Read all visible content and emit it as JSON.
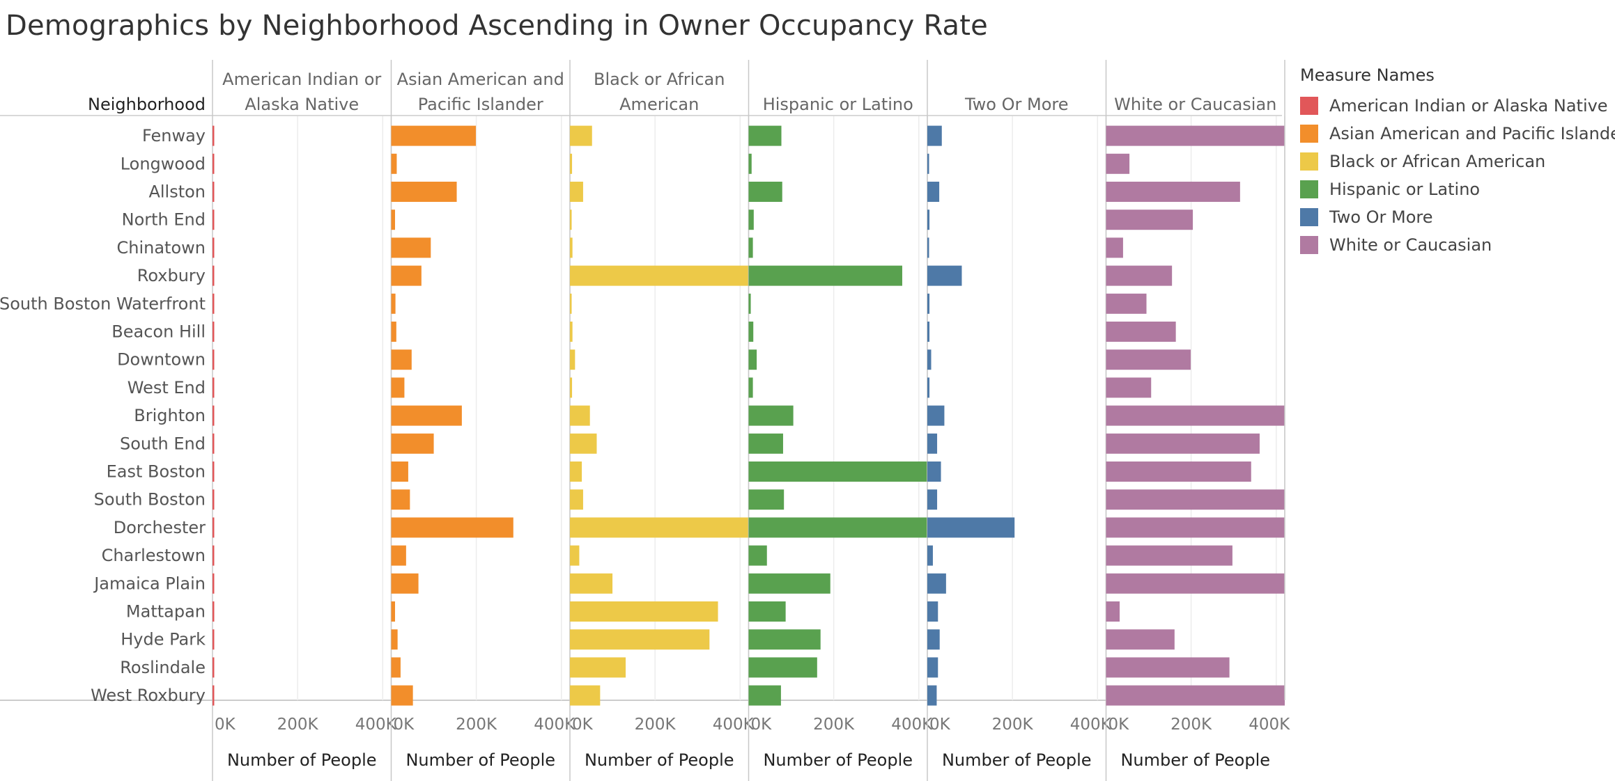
{
  "title": "Demographics by Neighborhood Ascending in Owner Occupancy Rate",
  "chart_data": {
    "type": "bar",
    "orientation": "horizontal",
    "layout": "small-multiples",
    "row_header": "Neighborhood",
    "categories": [
      "Fenway",
      "Longwood",
      "Allston",
      "North End",
      "Chinatown",
      "Roxbury",
      "South Boston Waterfront",
      "Beacon Hill",
      "Downtown",
      "West End",
      "Brighton",
      "South End",
      "East Boston",
      "South Boston",
      "Dorchester",
      "Charlestown",
      "Jamaica Plain",
      "Mattapan",
      "Hyde Park",
      "Roslindale",
      "West Roxbury"
    ],
    "series": [
      {
        "name": "American Indian or Alaska Native",
        "header_lines": [
          "American Indian or",
          "Alaska Native"
        ],
        "color": "#e15759",
        "values": [
          220,
          60,
          220,
          50,
          60,
          830,
          20,
          90,
          100,
          30,
          480,
          650,
          760,
          350,
          3640,
          150,
          420,
          520,
          670,
          210,
          240
        ]
      },
      {
        "name": "Asian American and Pacific Islander",
        "header_lines": [
          "Asian American and",
          "Pacific Islander"
        ],
        "color": "#f28e2b",
        "values": [
          199000,
          13000,
          154000,
          9000,
          93000,
          71000,
          10000,
          12000,
          48000,
          31000,
          166000,
          100000,
          40000,
          44000,
          287000,
          35000,
          64000,
          9000,
          15000,
          22000,
          51000
        ]
      },
      {
        "name": "Black or African American",
        "header_lines": [
          "Black or African",
          "American"
        ],
        "color": "#edc948",
        "values": [
          52000,
          5000,
          31000,
          2000,
          6000,
          420000,
          2000,
          6000,
          12000,
          5000,
          47000,
          63000,
          28000,
          31000,
          420000,
          22000,
          100000,
          348000,
          328000,
          131000,
          71000
        ]
      },
      {
        "name": "Hispanic or Latino",
        "header_lines": [
          "Hispanic or Latino"
        ],
        "color": "#59a14f",
        "values": [
          77000,
          7000,
          79000,
          12000,
          10000,
          361000,
          5000,
          11000,
          19000,
          10000,
          105000,
          81000,
          420000,
          83000,
          420000,
          43000,
          192000,
          87000,
          169000,
          161000,
          76000
        ]
      },
      {
        "name": "Two Or More",
        "header_lines": [
          "Two Or More"
        ],
        "color": "#4e79a7",
        "values": [
          34000,
          2000,
          28000,
          5000,
          2000,
          81000,
          5000,
          5000,
          9000,
          5000,
          40000,
          23000,
          32000,
          23000,
          205000,
          13000,
          44000,
          25000,
          29000,
          25000,
          22000
        ]
      },
      {
        "name": "White or Caucasian",
        "header_lines": [
          "White or Caucasian"
        ],
        "color": "#b07aa1",
        "values": [
          420000,
          55000,
          315000,
          204000,
          40000,
          155000,
          95000,
          164000,
          199000,
          106000,
          420000,
          361000,
          341000,
          420000,
          420000,
          297000,
          420000,
          32000,
          161000,
          290000,
          420000
        ]
      }
    ],
    "x_axis": {
      "label": "Number of People",
      "ticks": [
        "0K",
        "200K",
        "400K"
      ],
      "tick_values": [
        0,
        200000,
        400000
      ],
      "range": [
        0,
        420000
      ]
    },
    "grid": true,
    "legend": {
      "title": "Measure Names",
      "position": "right"
    }
  }
}
